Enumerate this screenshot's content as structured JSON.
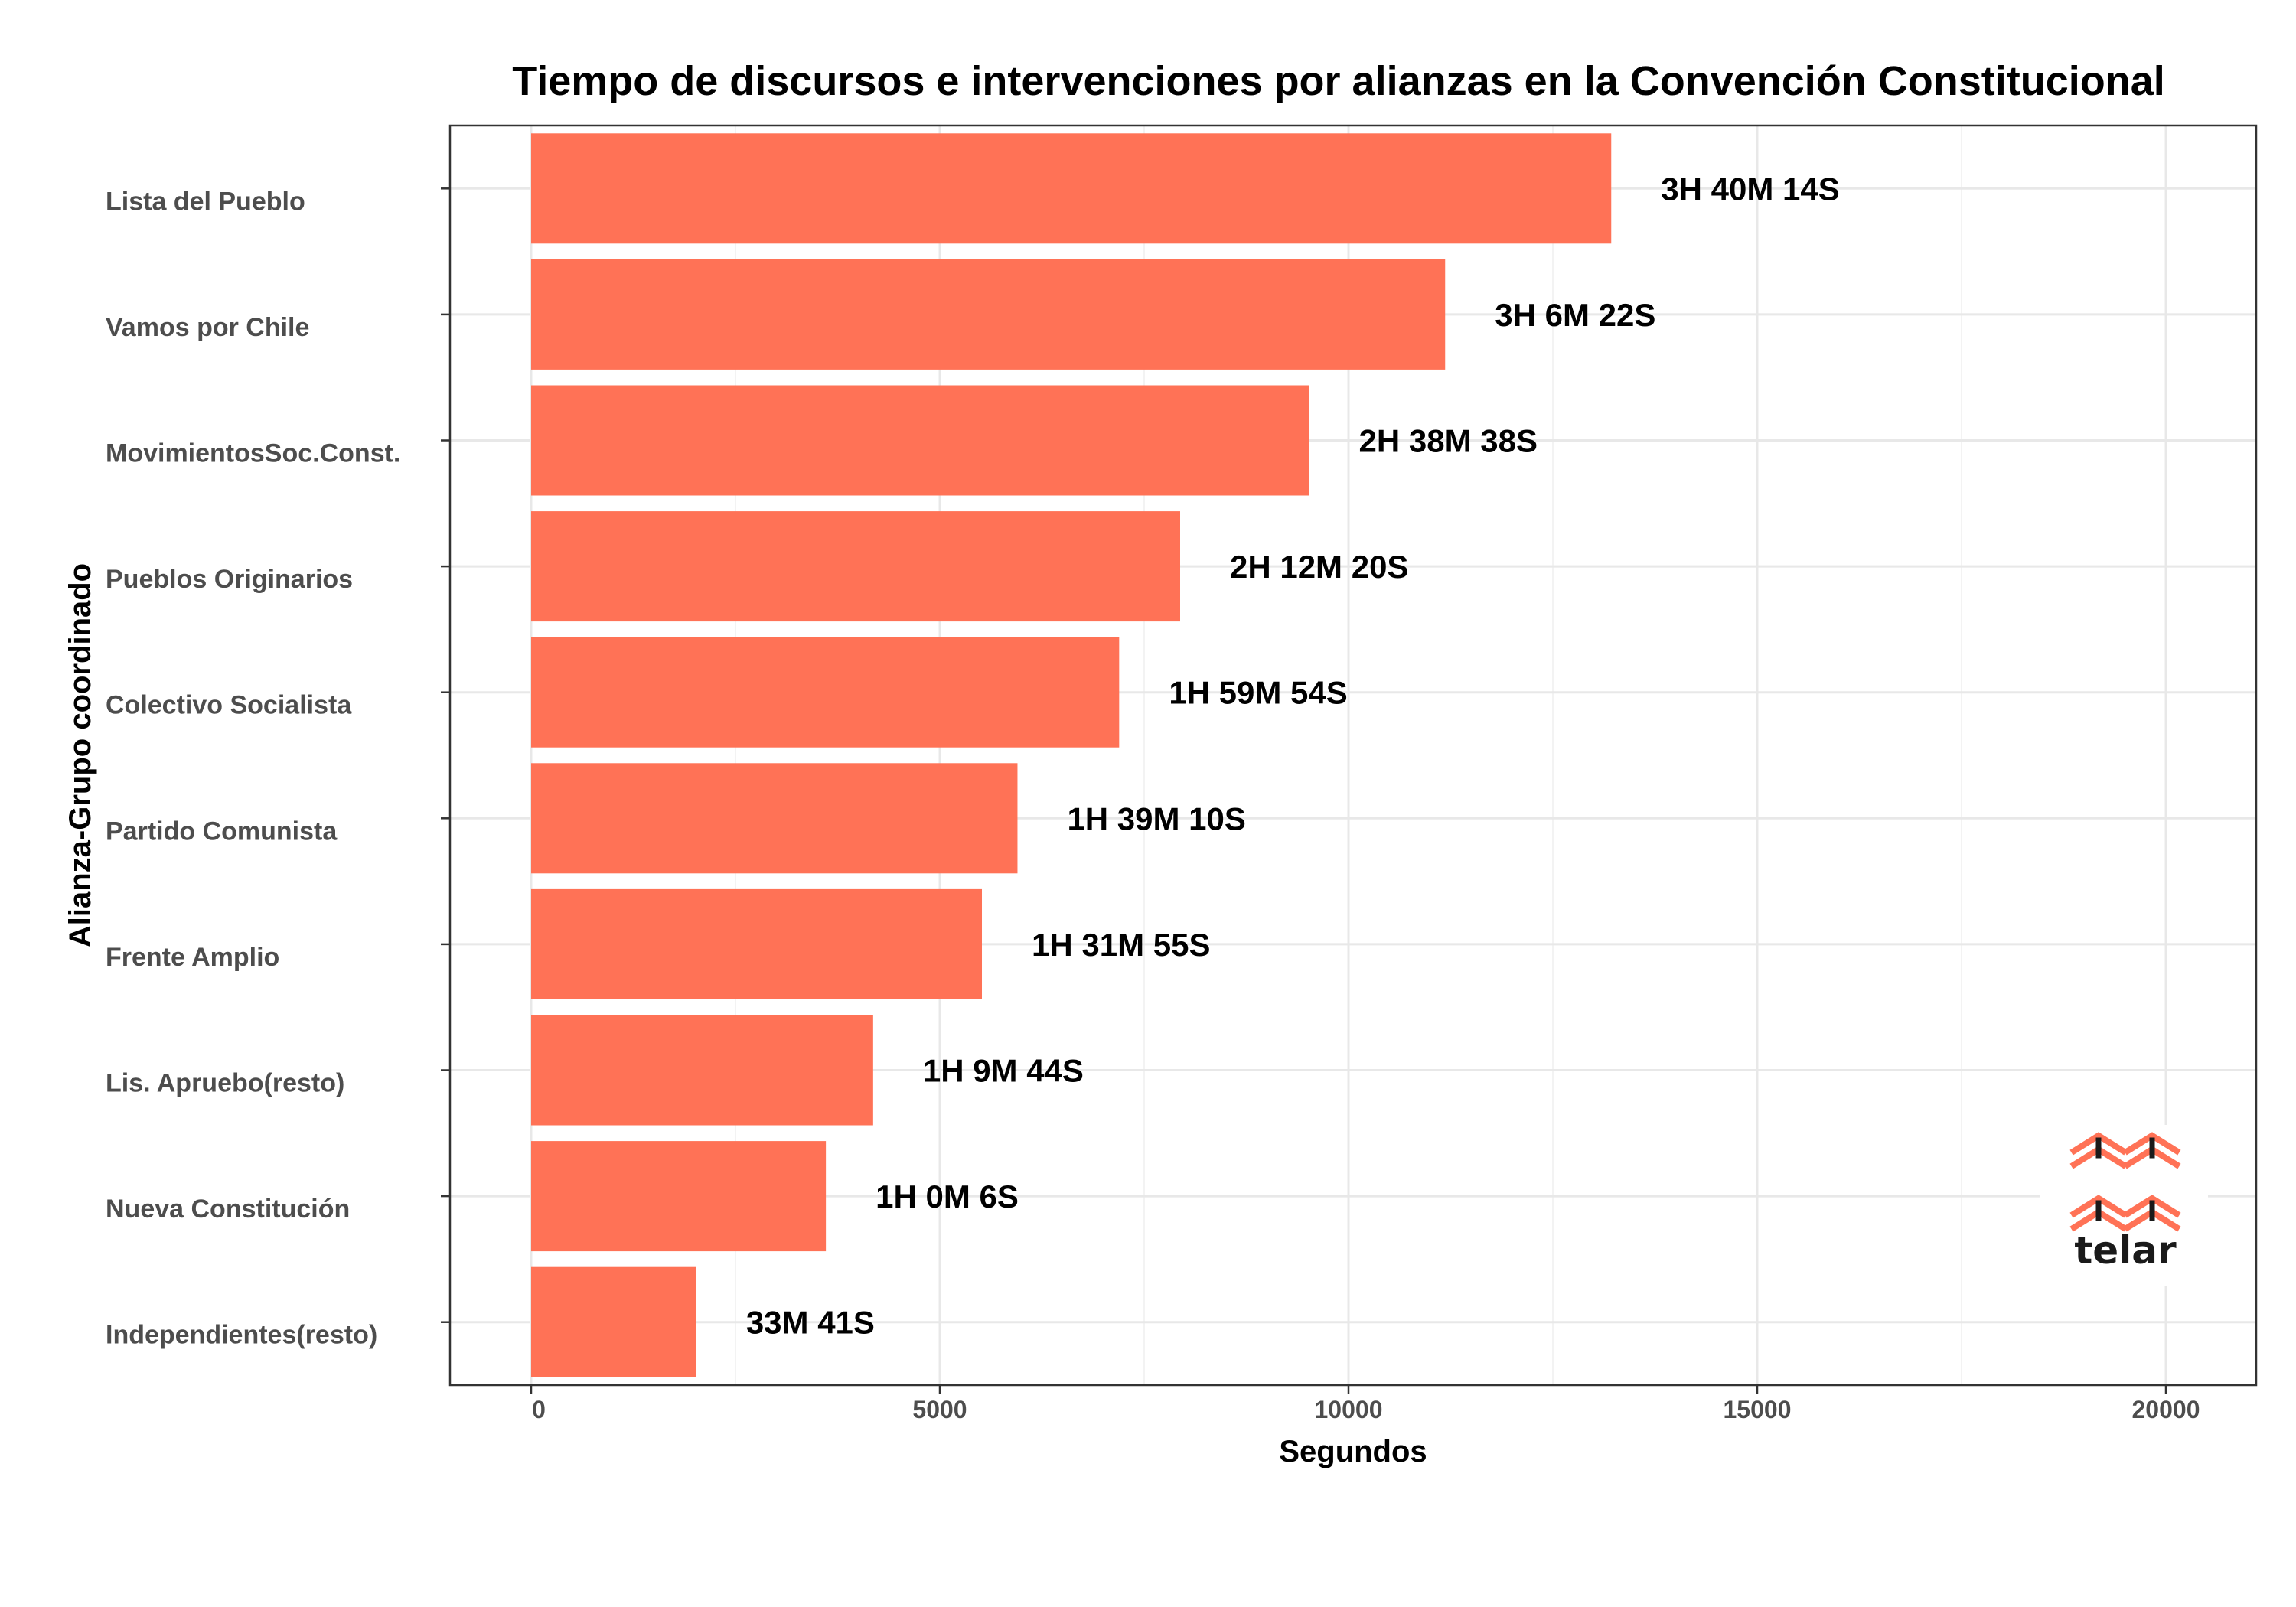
{
  "chart_data": {
    "type": "bar",
    "orientation": "horizontal",
    "title": "Tiempo de discursos e intervenciones por alianzas en la Convención Constitucional",
    "xlabel": "Segundos",
    "ylabel": "Alianza-Grupo coordinado",
    "xlim": [
      0,
      20000
    ],
    "xticks": [
      "0",
      "5000",
      "10000",
      "15000",
      "20000"
    ],
    "grid": true,
    "bar_color": "#ff7256",
    "categories": [
      "Lista del Pueblo",
      "Vamos por Chile",
      "MovimientosSoc.Const.",
      "Pueblos Originarios",
      "Colectivo Socialista",
      "Partido Comunista",
      "Frente Amplio",
      "Lis. Apruebo(resto)",
      "Nueva Constitución",
      "Independientes(resto)"
    ],
    "values": [
      13214,
      11182,
      9518,
      7940,
      7194,
      5950,
      5515,
      4184,
      3606,
      2021
    ],
    "data_labels": [
      "3H 40M 14S",
      "3H 6M 22S",
      "2H 38M 38S",
      "2H 12M 20S",
      "1H 59M 54S",
      "1H 39M 10S",
      "1H 31M 55S",
      "1H 9M 44S",
      "1H 0M 6S",
      "33M 41S"
    ]
  },
  "logo": {
    "text": "telar",
    "icon": "woven-chevrons-icon",
    "accent_color": "#ff7256"
  }
}
